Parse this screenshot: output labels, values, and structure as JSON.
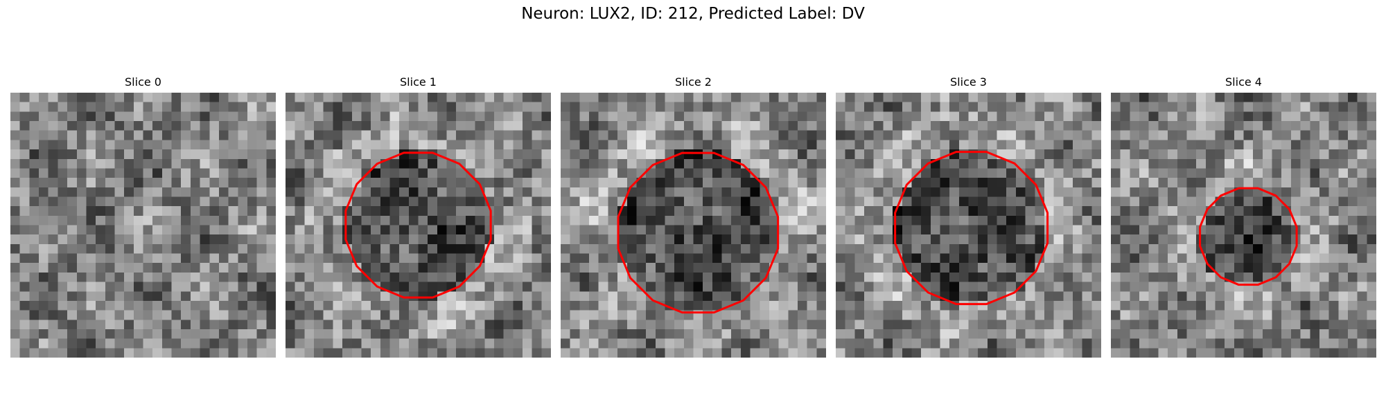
{
  "title": "Neuron: LUX2, ID: 212, Predicted Label: DV",
  "slices": [
    {
      "label": "Slice 0",
      "contour": null
    },
    {
      "label": "Slice 1",
      "contour": {
        "cx": 14,
        "cy": 14,
        "r": 7.8
      }
    },
    {
      "label": "Slice 2",
      "contour": {
        "cx": 14.5,
        "cy": 14.8,
        "r": 8.6
      }
    },
    {
      "label": "Slice 3",
      "contour": {
        "cx": 14.3,
        "cy": 14.3,
        "r": 8.2
      }
    },
    {
      "label": "Slice 4",
      "contour": {
        "cx": 14.5,
        "cy": 15.2,
        "r": 5.2
      }
    }
  ],
  "colors": {
    "contour": "#ff0000",
    "background": "#ffffff"
  },
  "image_style": "grayscale"
}
